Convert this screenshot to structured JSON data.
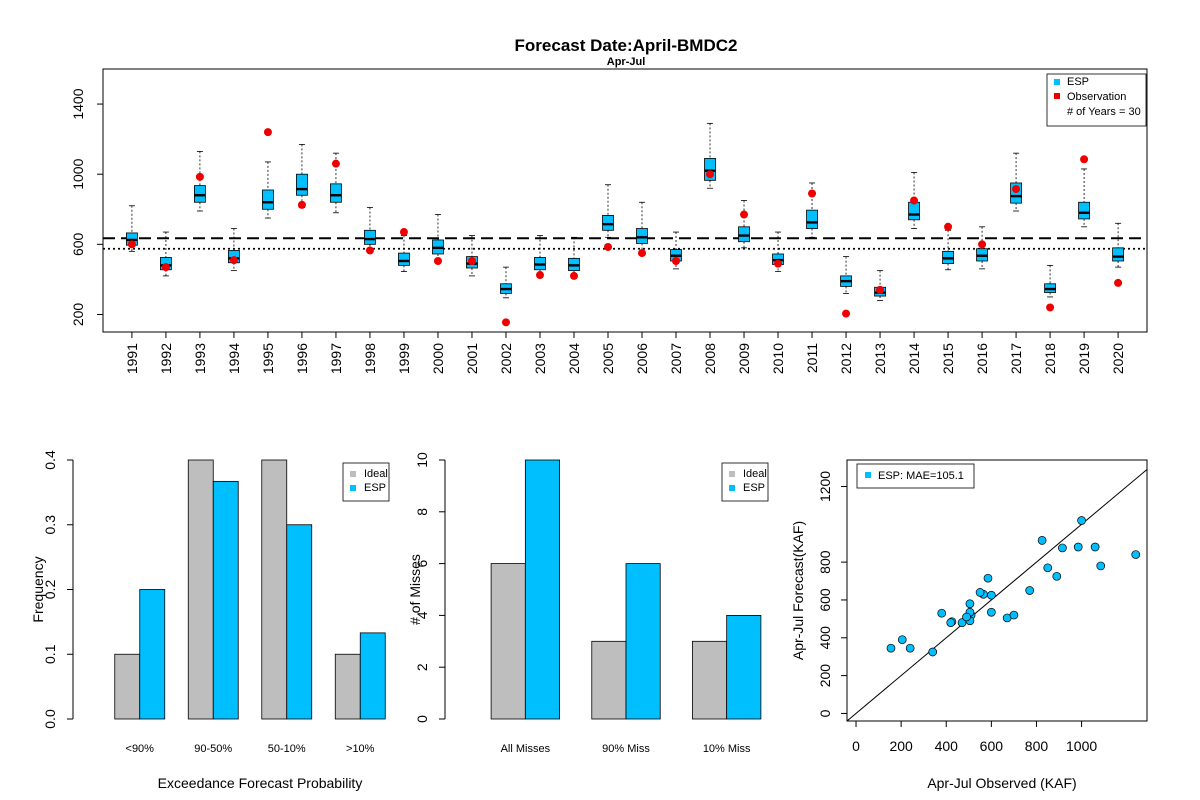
{
  "page": {
    "title": "Forecast Date:April-BMDC2",
    "subtitle": "Apr-Jul"
  },
  "colors": {
    "esp": "#00bfff",
    "observation": "#ee0000",
    "ideal": "#bebebe",
    "median_line": "#000000"
  },
  "chart_data": [
    {
      "type": "boxplot",
      "title": "Forecast Date:April-BMDC2",
      "subtitle": "Apr-Jul",
      "xlabel": "",
      "ylabel": "",
      "ylim": [
        100,
        1600
      ],
      "yticks": [
        200,
        600,
        1000,
        1400
      ],
      "categories": [
        "1991",
        "1992",
        "1993",
        "1994",
        "1995",
        "1996",
        "1997",
        "1998",
        "1999",
        "2000",
        "2001",
        "2002",
        "2003",
        "2004",
        "2005",
        "2006",
        "2007",
        "2008",
        "2009",
        "2010",
        "2011",
        "2012",
        "2013",
        "2014",
        "2015",
        "2016",
        "2017",
        "2018",
        "2019",
        "2020"
      ],
      "esp_boxes": [
        {
          "wlo": 560,
          "q1": 595,
          "med": 625,
          "q3": 665,
          "whi": 820
        },
        {
          "wlo": 420,
          "q1": 455,
          "med": 480,
          "q3": 525,
          "whi": 670
        },
        {
          "wlo": 790,
          "q1": 840,
          "med": 880,
          "q3": 935,
          "whi": 1130
        },
        {
          "wlo": 450,
          "q1": 495,
          "med": 520,
          "q3": 565,
          "whi": 690
        },
        {
          "wlo": 750,
          "q1": 800,
          "med": 840,
          "q3": 910,
          "whi": 1070
        },
        {
          "wlo": 810,
          "q1": 880,
          "med": 915,
          "q3": 1000,
          "whi": 1170
        },
        {
          "wlo": 780,
          "q1": 840,
          "med": 880,
          "q3": 945,
          "whi": 1120
        },
        {
          "wlo": 570,
          "q1": 600,
          "med": 630,
          "q3": 680,
          "whi": 810
        },
        {
          "wlo": 445,
          "q1": 480,
          "med": 505,
          "q3": 550,
          "whi": 650
        },
        {
          "wlo": 500,
          "q1": 545,
          "med": 580,
          "q3": 625,
          "whi": 770
        },
        {
          "wlo": 420,
          "q1": 465,
          "med": 490,
          "q3": 530,
          "whi": 650
        },
        {
          "wlo": 295,
          "q1": 320,
          "med": 345,
          "q3": 375,
          "whi": 470
        },
        {
          "wlo": 415,
          "q1": 455,
          "med": 485,
          "q3": 525,
          "whi": 650
        },
        {
          "wlo": 415,
          "q1": 450,
          "med": 480,
          "q3": 520,
          "whi": 640
        },
        {
          "wlo": 640,
          "q1": 680,
          "med": 715,
          "q3": 765,
          "whi": 940
        },
        {
          "wlo": 560,
          "q1": 605,
          "med": 640,
          "q3": 690,
          "whi": 840
        },
        {
          "wlo": 460,
          "q1": 505,
          "med": 535,
          "q3": 570,
          "whi": 670
        },
        {
          "wlo": 920,
          "q1": 965,
          "med": 1020,
          "q3": 1090,
          "whi": 1290
        },
        {
          "wlo": 580,
          "q1": 615,
          "med": 650,
          "q3": 700,
          "whi": 850
        },
        {
          "wlo": 445,
          "q1": 485,
          "med": 510,
          "q3": 545,
          "whi": 670
        },
        {
          "wlo": 640,
          "q1": 690,
          "med": 725,
          "q3": 795,
          "whi": 950
        },
        {
          "wlo": 320,
          "q1": 360,
          "med": 390,
          "q3": 420,
          "whi": 530
        },
        {
          "wlo": 280,
          "q1": 305,
          "med": 325,
          "q3": 355,
          "whi": 450
        },
        {
          "wlo": 690,
          "q1": 740,
          "med": 770,
          "q3": 840,
          "whi": 1010
        },
        {
          "wlo": 455,
          "q1": 490,
          "med": 520,
          "q3": 560,
          "whi": 680
        },
        {
          "wlo": 460,
          "q1": 505,
          "med": 535,
          "q3": 575,
          "whi": 700
        },
        {
          "wlo": 790,
          "q1": 835,
          "med": 875,
          "q3": 950,
          "whi": 1120
        },
        {
          "wlo": 300,
          "q1": 325,
          "med": 345,
          "q3": 375,
          "whi": 480
        },
        {
          "wlo": 700,
          "q1": 745,
          "med": 780,
          "q3": 840,
          "whi": 1030
        },
        {
          "wlo": 470,
          "q1": 505,
          "med": 530,
          "q3": 580,
          "whi": 720
        }
      ],
      "observations": [
        600,
        470,
        985,
        510,
        1240,
        825,
        1060,
        565,
        670,
        505,
        505,
        155,
        425,
        420,
        585,
        550,
        505,
        1000,
        770,
        490,
        890,
        205,
        340,
        850,
        700,
        600,
        915,
        240,
        1085,
        380
      ],
      "reference_lines": [
        {
          "style": "dashed",
          "value": 635
        },
        {
          "style": "dotted",
          "value": 575
        }
      ],
      "legend": {
        "position": "top-right",
        "items": [
          "ESP",
          "Observation"
        ],
        "note": "# of Years = 30"
      }
    },
    {
      "type": "bar",
      "categories": [
        "<90%",
        "90-50%",
        "50-10%",
        ">10%"
      ],
      "series": [
        {
          "name": "Ideal",
          "values": [
            0.1,
            0.4,
            0.4,
            0.1
          ]
        },
        {
          "name": "ESP",
          "values": [
            0.2,
            0.367,
            0.3,
            0.133
          ]
        }
      ],
      "xlabel": "Exceedance Forecast Probability",
      "ylabel": "Frequency",
      "ylim": [
        0,
        0.4
      ],
      "yticks": [
        "0.0",
        "0.1",
        "0.2",
        "0.3",
        "0.4"
      ],
      "legend": {
        "position": "top-right"
      }
    },
    {
      "type": "bar",
      "categories": [
        "All Misses",
        "90% Miss",
        "10% Miss"
      ],
      "series": [
        {
          "name": "Ideal",
          "values": [
            6,
            3,
            3
          ]
        },
        {
          "name": "ESP",
          "values": [
            10,
            6,
            4
          ]
        }
      ],
      "xlabel": "",
      "ylabel": "# of Misses",
      "ylim": [
        0,
        10
      ],
      "yticks": [
        "0",
        "2",
        "4",
        "6",
        "8",
        "10"
      ],
      "legend": {
        "position": "top-right"
      }
    },
    {
      "type": "scatter",
      "xlabel": "Apr-Jul Observed (KAF)",
      "ylabel": "Apr-Jul Forecast(KAF)",
      "xlim": [
        -40,
        1290
      ],
      "ylim": [
        -40,
        1340
      ],
      "xticks": [
        "0",
        "200",
        "400",
        "600",
        "800",
        "1000"
      ],
      "yticks": [
        "0",
        "200",
        "400",
        "600",
        "800",
        "1200"
      ],
      "legend": {
        "position": "top-left",
        "label": "ESP: MAE=105.1"
      },
      "one_to_one_line": true,
      "points": [
        [
          600,
          625
        ],
        [
          470,
          480
        ],
        [
          985,
          880
        ],
        [
          510,
          520
        ],
        [
          1240,
          840
        ],
        [
          825,
          915
        ],
        [
          1060,
          880
        ],
        [
          565,
          630
        ],
        [
          670,
          505
        ],
        [
          505,
          580
        ],
        [
          505,
          490
        ],
        [
          155,
          345
        ],
        [
          425,
          485
        ],
        [
          420,
          480
        ],
        [
          585,
          715
        ],
        [
          550,
          640
        ],
        [
          505,
          535
        ],
        [
          1000,
          1020
        ],
        [
          770,
          650
        ],
        [
          490,
          510
        ],
        [
          890,
          725
        ],
        [
          205,
          390
        ],
        [
          340,
          325
        ],
        [
          850,
          770
        ],
        [
          700,
          520
        ],
        [
          600,
          535
        ],
        [
          915,
          875
        ],
        [
          240,
          345
        ],
        [
          1085,
          780
        ],
        [
          380,
          530
        ]
      ]
    }
  ]
}
